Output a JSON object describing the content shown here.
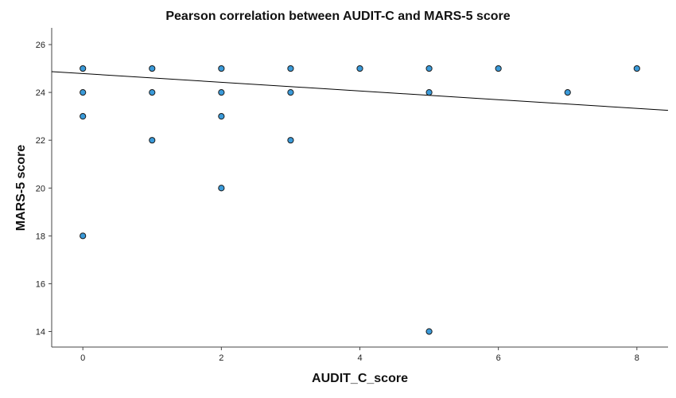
{
  "chart_data": {
    "type": "scatter",
    "title": "Pearson correlation between AUDIT-C and MARS-5 score",
    "xlabel": "AUDIT_C_score",
    "ylabel": "MARS-5 score",
    "xlim": [
      -0.45,
      8.45
    ],
    "ylim": [
      13.35,
      26.7
    ],
    "x_ticks": [
      0,
      2,
      4,
      6,
      8
    ],
    "y_ticks": [
      14,
      16,
      18,
      20,
      22,
      24,
      26
    ],
    "grid": false,
    "legend": "none",
    "marker_color": "#3a9ad9",
    "marker_edge_color": "#1a1a1a",
    "line_color": "#000000",
    "points": [
      {
        "x": 0,
        "y": 25
      },
      {
        "x": 0,
        "y": 24
      },
      {
        "x": 0,
        "y": 23
      },
      {
        "x": 0,
        "y": 18
      },
      {
        "x": 1,
        "y": 25
      },
      {
        "x": 1,
        "y": 24
      },
      {
        "x": 1,
        "y": 22
      },
      {
        "x": 2,
        "y": 25
      },
      {
        "x": 2,
        "y": 24
      },
      {
        "x": 2,
        "y": 23
      },
      {
        "x": 2,
        "y": 20
      },
      {
        "x": 3,
        "y": 25
      },
      {
        "x": 3,
        "y": 24
      },
      {
        "x": 3,
        "y": 22
      },
      {
        "x": 4,
        "y": 25
      },
      {
        "x": 5,
        "y": 25
      },
      {
        "x": 5,
        "y": 24
      },
      {
        "x": 5,
        "y": 14
      },
      {
        "x": 6,
        "y": 25
      },
      {
        "x": 7,
        "y": 24
      },
      {
        "x": 8,
        "y": 25
      }
    ],
    "fit_line": {
      "x": [
        -0.45,
        8.45
      ],
      "y": [
        24.87,
        23.25
      ]
    }
  }
}
